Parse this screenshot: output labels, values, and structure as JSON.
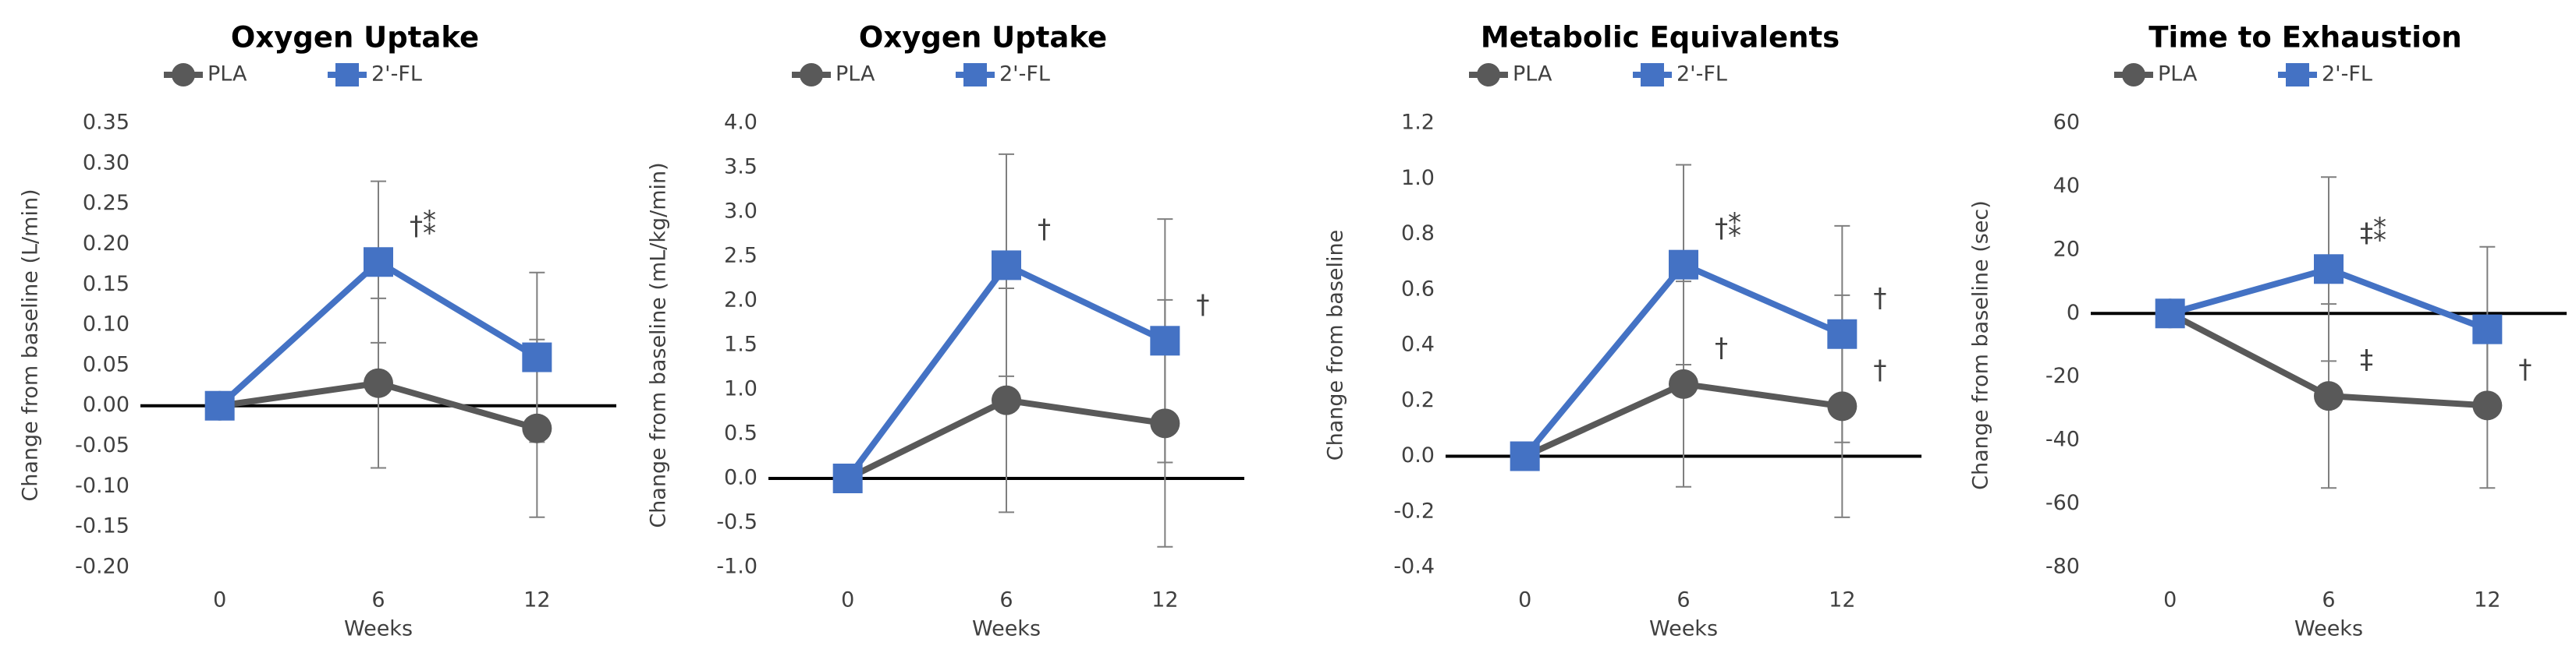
{
  "chart_data": [
    {
      "type": "line",
      "title": "Oxygen Uptake",
      "x_label": "Weeks",
      "y_label": "Change from baseline (L/min)",
      "categories": [
        "0",
        "6",
        "12"
      ],
      "series": [
        {
          "name": "PLA",
          "color": "#595959",
          "values": [
            0,
            0.028,
            -0.028
          ],
          "errors": [
            0,
            0.105,
            0.11
          ]
        },
        {
          "name": "2'-FL",
          "color": "#4472c4",
          "values": [
            0,
            0.178,
            0.06
          ],
          "errors": [
            0,
            0.1,
            0.105
          ]
        }
      ],
      "ylim": [
        -0.2,
        0.35
      ],
      "yticks": [
        {
          "value": -0.2,
          "label": "-0.20"
        },
        -0.15,
        {
          "value": -0.1,
          "label": "-0.10"
        },
        -0.05,
        {
          "value": 0,
          "label": "0.00"
        },
        0.05,
        {
          "value": 0.1,
          "label": "0.10"
        },
        0.15,
        {
          "value": 0.2,
          "label": "0.20"
        },
        0.25,
        {
          "value": 0.3,
          "label": "0.30"
        },
        0.35
      ],
      "annotations": [
        {
          "text": "†⁑",
          "series": "2'-FL",
          "category": "6"
        }
      ]
    },
    {
      "type": "line",
      "title": "Oxygen Uptake",
      "x_label": "Weeks",
      "y_label": "Change from baseline (mL/kg/min)",
      "categories": [
        "0",
        "6",
        "12"
      ],
      "series": [
        {
          "name": "PLA",
          "color": "#595959",
          "values": [
            0,
            0.88,
            0.62
          ],
          "errors": [
            0,
            1.26,
            1.39
          ]
        },
        {
          "name": "2'-FL",
          "color": "#4472c4",
          "values": [
            0,
            2.4,
            1.55
          ],
          "errors": [
            0,
            1.25,
            1.37
          ]
        }
      ],
      "ylim": [
        -1,
        4
      ],
      "yticks": [
        {
          "value": -1,
          "label": "-1.0"
        },
        -0.5,
        {
          "value": 0,
          "label": "0.0"
        },
        0.5,
        {
          "value": 1,
          "label": "1.0"
        },
        1.5,
        {
          "value": 2,
          "label": "2.0"
        },
        2.5,
        {
          "value": 3,
          "label": "3.0"
        },
        3.5,
        {
          "value": 4,
          "label": "4.0"
        }
      ],
      "annotations": [
        {
          "text": "†",
          "series": "2'-FL",
          "category": "6"
        },
        {
          "text": "†",
          "series": "2'-FL",
          "category": "12"
        }
      ]
    },
    {
      "type": "line",
      "title": "Metabolic Equivalents",
      "x_label": "Weeks",
      "y_label": "Change from baseline",
      "categories": [
        "0",
        "6",
        "12"
      ],
      "series": [
        {
          "name": "PLA",
          "color": "#595959",
          "values": [
            0,
            0.26,
            0.18
          ],
          "errors": [
            0,
            0.37,
            0.4
          ]
        },
        {
          "name": "2'-FL",
          "color": "#4472c4",
          "values": [
            0,
            0.69,
            0.44
          ],
          "errors": [
            0,
            0.36,
            0.39
          ]
        }
      ],
      "ylim": [
        -0.4,
        1.2
      ],
      "yticks": [
        -0.4,
        -0.2,
        {
          "value": 0,
          "label": "0.0"
        },
        0.2,
        0.4,
        0.6,
        0.8,
        {
          "value": 1,
          "label": "1.0"
        },
        1.2
      ],
      "annotations": [
        {
          "text": "†⁑",
          "series": "2'-FL",
          "category": "6"
        },
        {
          "text": "†",
          "series": "PLA",
          "category": "6"
        },
        {
          "text": "†",
          "series": "2'-FL",
          "category": "12"
        },
        {
          "text": "†",
          "series": "PLA",
          "category": "12"
        }
      ]
    },
    {
      "type": "line",
      "title": "Time to Exhaustion",
      "x_label": "Weeks",
      "y_label": "Change from baseline (sec)",
      "categories": [
        "0",
        "6",
        "12"
      ],
      "series": [
        {
          "name": "PLA",
          "color": "#595959",
          "values": [
            0,
            -26,
            -29
          ],
          "errors": [
            0,
            29,
            26
          ]
        },
        {
          "name": "2'-FL",
          "color": "#4472c4",
          "values": [
            0,
            14,
            -5
          ],
          "errors": [
            0,
            29,
            26
          ]
        }
      ],
      "ylim": [
        -80,
        60
      ],
      "yticks": [
        -80,
        -60,
        -40,
        -20,
        0,
        20,
        40,
        60
      ],
      "annotations": [
        {
          "text": "‡⁑",
          "series": "2'-FL",
          "category": "6"
        },
        {
          "text": "‡",
          "series": "PLA",
          "category": "6"
        },
        {
          "text": "†",
          "series": "PLA",
          "category": "12"
        }
      ]
    }
  ]
}
